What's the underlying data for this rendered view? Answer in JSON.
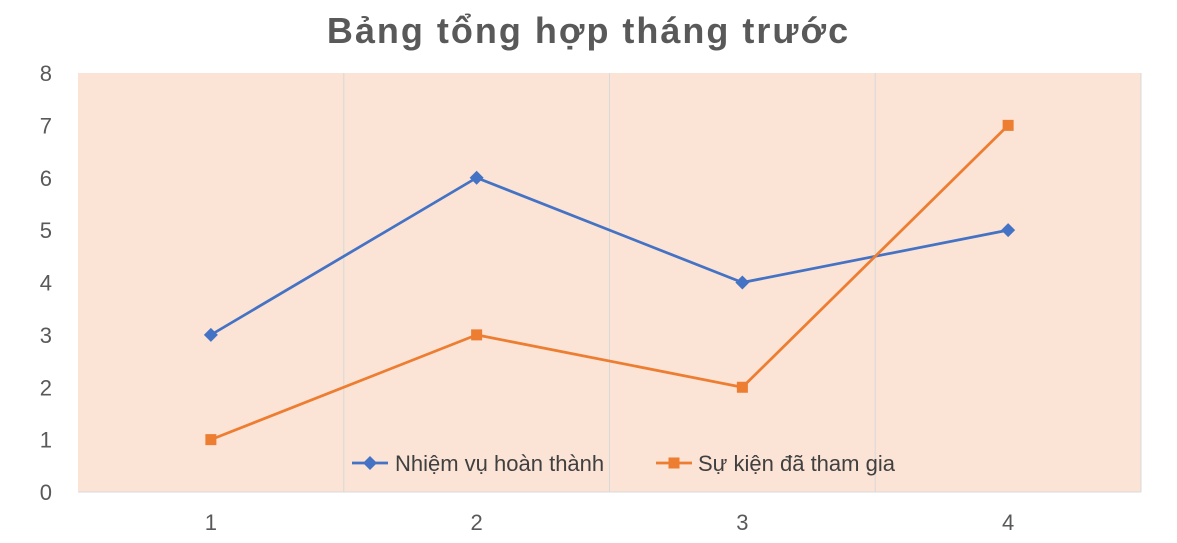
{
  "chart_data": {
    "type": "line",
    "title": "Bảng tổng hợp tháng trước",
    "categories": [
      "1",
      "2",
      "3",
      "4"
    ],
    "series": [
      {
        "name": "Nhiệm vụ hoàn thành",
        "values": [
          3,
          6,
          4,
          5
        ],
        "color": "#4472C4",
        "marker": "diamond"
      },
      {
        "name": "Sự kiện đã tham gia",
        "values": [
          1,
          3,
          2,
          7
        ],
        "color": "#ED7D31",
        "marker": "square"
      }
    ],
    "ylim": [
      0,
      8
    ],
    "yticks": [
      0,
      1,
      2,
      3,
      4,
      5,
      6,
      7,
      8
    ],
    "grid": "vertical",
    "legend": "bottom-inside",
    "plot_background": "#FBE3D5",
    "xlabel": "",
    "ylabel": ""
  }
}
